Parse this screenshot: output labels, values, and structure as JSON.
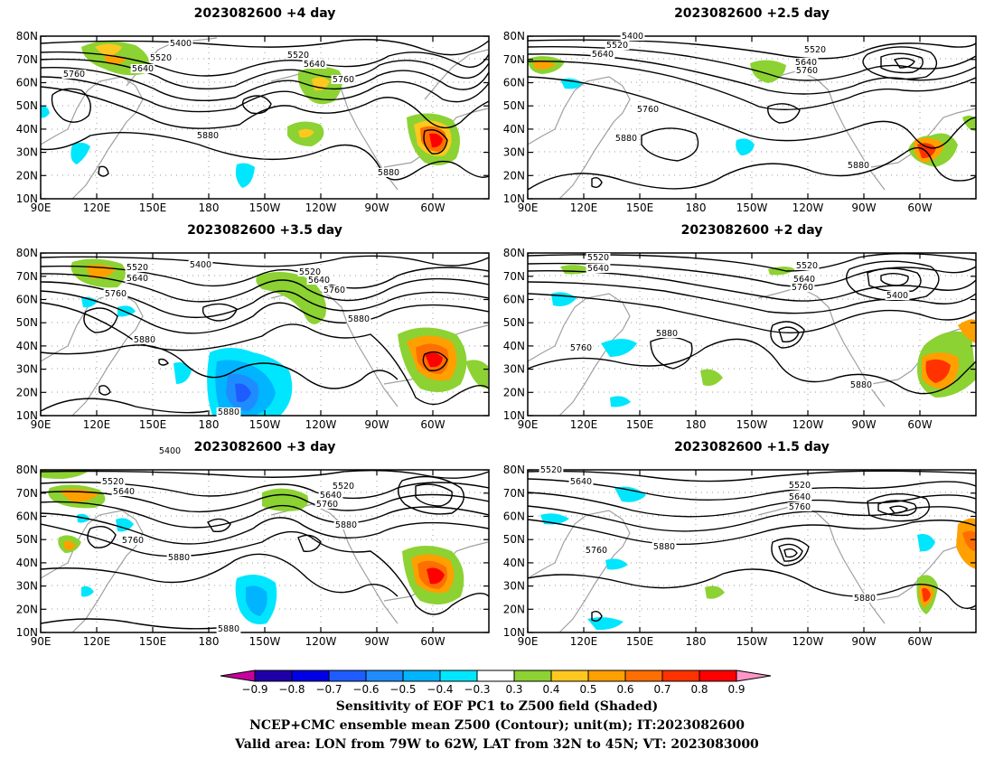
{
  "panels": [
    {
      "title": "2023082600 +4 day"
    },
    {
      "title": "2023082600 +2.5 day"
    },
    {
      "title": "2023082600 +3.5 day"
    },
    {
      "title": "2023082600 +2 day"
    },
    {
      "title": "2023082600 +3 day"
    },
    {
      "title": "2023082600 +1.5 day"
    }
  ],
  "map": {
    "x_ticks": [
      "90E",
      "120E",
      "150E",
      "180",
      "150W",
      "120W",
      "90W",
      "60W"
    ],
    "y_ticks": [
      "10N",
      "20N",
      "30N",
      "40N",
      "50N",
      "60N",
      "70N",
      "80N"
    ]
  },
  "colorbar": {
    "labels": [
      "−0.9",
      "−0.8",
      "−0.7",
      "−0.6",
      "−0.5",
      "−0.4",
      "−0.3",
      "0.3",
      "0.4",
      "0.5",
      "0.6",
      "0.7",
      "0.8",
      "0.9"
    ],
    "colors": [
      "#1e00a8",
      "#0000e6",
      "#1e5cff",
      "#1e8cff",
      "#00b4ff",
      "#00e6ff",
      "#ffffff",
      "#8cd232",
      "#ffc81e",
      "#ffa000",
      "#ff6e00",
      "#ff3200",
      "#ff0000"
    ],
    "under_color": "#c800a0",
    "over_color": "#ff96c8"
  },
  "caption": {
    "line1": "Sensitivity of EOF PC1 to Z500 field (Shaded)",
    "line2": "NCEP+CMC ensemble mean Z500 (Contour); unit(m); IT:2023082600",
    "line3": "Valid area: LON from 79W to 62W, LAT from 32N to 45N; VT: 2023083000"
  },
  "chart_data": {
    "type": "heatmap",
    "contour_levels": [
      "5400",
      "5520",
      "5640",
      "5760",
      "5880"
    ],
    "panels": [
      {
        "lead": "+4 day",
        "labels": [
          [
            "5400",
            200,
            50
          ],
          [
            "5520",
            178,
            66
          ],
          [
            "5640",
            158,
            78
          ],
          [
            "5760",
            82,
            84
          ],
          [
            "5880",
            230,
            152
          ],
          [
            "5520",
            330,
            63
          ],
          [
            "5640",
            348,
            73
          ],
          [
            "5760",
            380,
            90
          ],
          [
            "5880",
            430,
            193
          ]
        ]
      },
      {
        "lead": "+2.5 day",
        "labels": [
          [
            "5400",
            700,
            42
          ],
          [
            "5520",
            683,
            52
          ],
          [
            "5640",
            667,
            62
          ],
          [
            "5760",
            717,
            123
          ],
          [
            "5880",
            693,
            155
          ],
          [
            "5520",
            902,
            57
          ],
          [
            "5640",
            892,
            71
          ],
          [
            "5760",
            893,
            80
          ],
          [
            "5880",
            950,
            185
          ]
        ]
      },
      {
        "lead": "+3.5 day",
        "labels": [
          [
            "5400",
            222,
            295
          ],
          [
            "5520",
            152,
            298
          ],
          [
            "5640",
            152,
            310
          ],
          [
            "5760",
            128,
            327
          ],
          [
            "5880",
            160,
            378
          ],
          [
            "5880",
            253,
            458
          ],
          [
            "5520",
            343,
            303
          ],
          [
            "5640",
            353,
            312
          ],
          [
            "5760",
            370,
            323
          ],
          [
            "5880",
            397,
            355
          ]
        ]
      },
      {
        "lead": "+2 day",
        "labels": [
          [
            "5520",
            662,
            287
          ],
          [
            "5640",
            662,
            299
          ],
          [
            "5760",
            643,
            387
          ],
          [
            "5880",
            738,
            371
          ],
          [
            "5520",
            893,
            296
          ],
          [
            "5640",
            890,
            311
          ],
          [
            "5760",
            888,
            320
          ],
          [
            "5400",
            993,
            329
          ],
          [
            "5880",
            953,
            428
          ]
        ]
      },
      {
        "lead": "+3 day",
        "labels": [
          [
            "5400",
            188,
            501
          ],
          [
            "5520",
            125,
            535
          ],
          [
            "5640",
            137,
            546
          ],
          [
            "5760",
            147,
            600
          ],
          [
            "5880",
            198,
            619
          ],
          [
            "5880",
            253,
            698
          ],
          [
            "5520",
            380,
            540
          ],
          [
            "5640",
            366,
            550
          ],
          [
            "5760",
            362,
            560
          ],
          [
            "5880",
            383,
            583
          ]
        ]
      },
      {
        "lead": "+1.5 day",
        "labels": [
          [
            "5520",
            610,
            522
          ],
          [
            "5640",
            643,
            535
          ],
          [
            "5760",
            660,
            611
          ],
          [
            "5880",
            735,
            607
          ],
          [
            "5520",
            885,
            539
          ],
          [
            "5640",
            885,
            552
          ],
          [
            "5760",
            885,
            563
          ],
          [
            "5880",
            957,
            664
          ]
        ]
      }
    ]
  }
}
